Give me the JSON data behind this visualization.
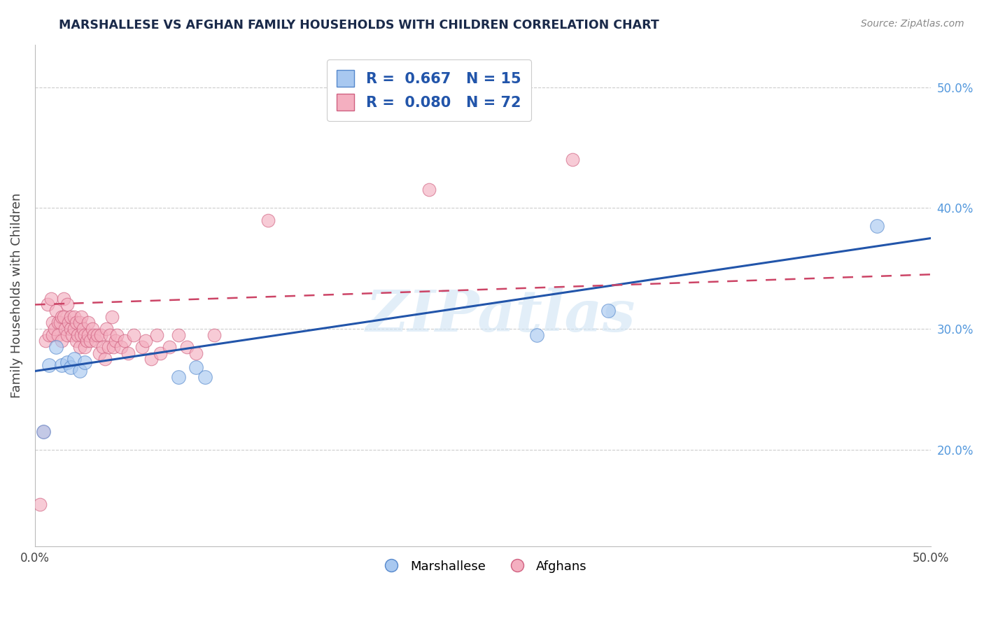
{
  "title": "MARSHALLESE VS AFGHAN FAMILY HOUSEHOLDS WITH CHILDREN CORRELATION CHART",
  "source": "Source: ZipAtlas.com",
  "ylabel": "Family Households with Children",
  "watermark": "ZIPatlas",
  "xlim": [
    0.0,
    0.5
  ],
  "ylim": [
    0.12,
    0.535
  ],
  "xtick_positions": [
    0.0,
    0.05,
    0.1,
    0.15,
    0.2,
    0.25,
    0.3,
    0.35,
    0.4,
    0.45,
    0.5
  ],
  "xtick_labels": [
    "0.0%",
    "",
    "",
    "",
    "",
    "",
    "",
    "",
    "",
    "",
    "50.0%"
  ],
  "ytick_right_labels": [
    "20.0%",
    "30.0%",
    "40.0%",
    "50.0%"
  ],
  "ytick_right_values": [
    0.2,
    0.3,
    0.4,
    0.5
  ],
  "blue_color": "#a8c8f0",
  "pink_color": "#f4afc0",
  "blue_edge_color": "#5588cc",
  "pink_edge_color": "#d06080",
  "blue_line_color": "#2255aa",
  "pink_line_color": "#cc4466",
  "series_label1": "Marshallese",
  "series_label2": "Afghans",
  "marshallese_x": [
    0.005,
    0.008,
    0.012,
    0.015,
    0.018,
    0.02,
    0.022,
    0.025,
    0.028,
    0.08,
    0.09,
    0.095,
    0.28,
    0.32,
    0.47
  ],
  "marshallese_y": [
    0.215,
    0.27,
    0.285,
    0.27,
    0.272,
    0.268,
    0.275,
    0.265,
    0.272,
    0.26,
    0.268,
    0.26,
    0.295,
    0.315,
    0.385
  ],
  "afghan_x": [
    0.003,
    0.005,
    0.006,
    0.007,
    0.008,
    0.009,
    0.01,
    0.01,
    0.011,
    0.012,
    0.013,
    0.013,
    0.014,
    0.015,
    0.015,
    0.016,
    0.016,
    0.017,
    0.018,
    0.018,
    0.019,
    0.02,
    0.02,
    0.021,
    0.022,
    0.022,
    0.023,
    0.023,
    0.024,
    0.025,
    0.025,
    0.026,
    0.026,
    0.027,
    0.028,
    0.028,
    0.029,
    0.03,
    0.03,
    0.031,
    0.032,
    0.033,
    0.034,
    0.035,
    0.036,
    0.037,
    0.038,
    0.039,
    0.04,
    0.041,
    0.042,
    0.043,
    0.044,
    0.045,
    0.046,
    0.048,
    0.05,
    0.052,
    0.055,
    0.06,
    0.062,
    0.065,
    0.068,
    0.07,
    0.075,
    0.08,
    0.085,
    0.09,
    0.1,
    0.13,
    0.22,
    0.3
  ],
  "afghan_y": [
    0.155,
    0.215,
    0.29,
    0.32,
    0.295,
    0.325,
    0.305,
    0.295,
    0.3,
    0.315,
    0.305,
    0.295,
    0.305,
    0.31,
    0.29,
    0.325,
    0.31,
    0.3,
    0.32,
    0.295,
    0.305,
    0.3,
    0.31,
    0.295,
    0.3,
    0.31,
    0.305,
    0.29,
    0.295,
    0.305,
    0.285,
    0.295,
    0.31,
    0.3,
    0.285,
    0.295,
    0.29,
    0.295,
    0.305,
    0.29,
    0.3,
    0.295,
    0.29,
    0.295,
    0.28,
    0.295,
    0.285,
    0.275,
    0.3,
    0.285,
    0.295,
    0.31,
    0.285,
    0.29,
    0.295,
    0.285,
    0.29,
    0.28,
    0.295,
    0.285,
    0.29,
    0.275,
    0.295,
    0.28,
    0.285,
    0.295,
    0.285,
    0.28,
    0.295,
    0.39,
    0.415,
    0.44
  ],
  "blue_line_x0": 0.0,
  "blue_line_y0": 0.265,
  "blue_line_x1": 0.5,
  "blue_line_y1": 0.375,
  "pink_line_x0": 0.0,
  "pink_line_y0": 0.32,
  "pink_line_x1": 0.5,
  "pink_line_y1": 0.345
}
